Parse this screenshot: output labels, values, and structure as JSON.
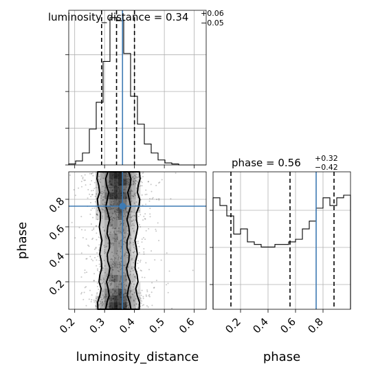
{
  "chart_data": {
    "type": "corner",
    "parameters": [
      "luminosity_distance",
      "phase"
    ],
    "truth": {
      "luminosity_distance": 0.36,
      "phase": 0.75
    },
    "marginals": [
      {
        "parameter": "luminosity_distance",
        "title_prefix": "luminosity_distance = 0.34",
        "title_sup": "+0.06",
        "title_sub": "−0.05",
        "quantiles": [
          0.29,
          0.34,
          0.4
        ],
        "xlim": [
          0.18,
          0.64
        ],
        "bin_edges": [
          0.18,
          0.203,
          0.226,
          0.249,
          0.272,
          0.295,
          0.318,
          0.341,
          0.364,
          0.387,
          0.41,
          0.433,
          0.456,
          0.479,
          0.502,
          0.525,
          0.548,
          0.571,
          0.594,
          0.617,
          0.64
        ],
        "counts": [
          1,
          4,
          12,
          36,
          63,
          104,
          148,
          145,
          112,
          69,
          41,
          21,
          12,
          5,
          2,
          1,
          0,
          0,
          0,
          0
        ]
      },
      {
        "parameter": "phase",
        "title_prefix": "phase = 0.56",
        "title_sup": "+0.32",
        "title_sub": "−0.42",
        "quantiles": [
          0.13,
          0.56,
          0.88
        ],
        "xlim": [
          0.0,
          1.0
        ],
        "bin_edges": [
          0,
          0.05,
          0.1,
          0.15,
          0.2,
          0.25,
          0.3,
          0.35,
          0.4,
          0.45,
          0.5,
          0.55,
          0.6,
          0.65,
          0.7,
          0.75,
          0.8,
          0.85,
          0.9,
          0.95,
          1.0
        ],
        "counts": [
          86,
          80,
          72,
          58,
          62,
          52,
          50,
          48,
          48,
          50,
          50,
          52,
          54,
          62,
          68,
          78,
          86,
          80,
          86,
          88
        ]
      }
    ],
    "joint": {
      "x_parameter": "luminosity_distance",
      "y_parameter": "phase",
      "xlim": [
        0.18,
        0.64
      ],
      "ylim": [
        0.0,
        1.0
      ],
      "x_center": 0.345,
      "x_spread": 0.045
    },
    "axes": {
      "x_ticks_lum": [
        "0.2",
        "0.3",
        "0.4",
        "0.5",
        "0.6"
      ],
      "x_ticks_phase": [
        "0.2",
        "0.4",
        "0.6",
        "0.8"
      ],
      "y_ticks_phase": [
        "0.2",
        "0.4",
        "0.6",
        "0.8"
      ],
      "xlabel_lum": "luminosity_distance",
      "xlabel_phase": "phase",
      "ylabel_phase": "phase"
    },
    "grid": true
  }
}
